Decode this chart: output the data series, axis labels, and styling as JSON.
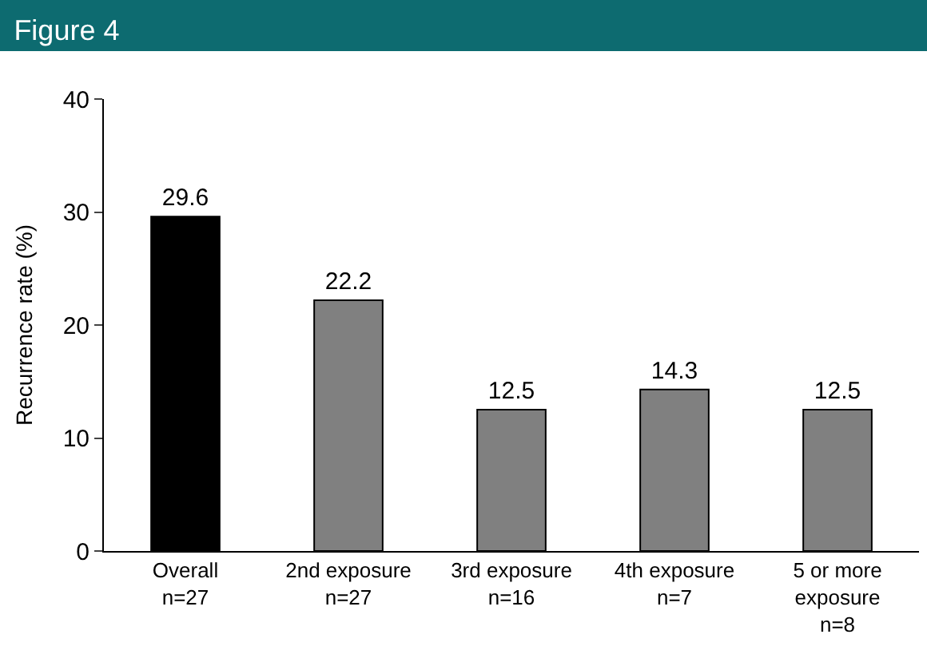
{
  "chart_data": {
    "type": "bar",
    "title": "Figure 4",
    "ylabel": "Recurrence rate (%)",
    "categories": [
      "Overall\nn=27",
      "2nd exposure\nn=27",
      "3rd exposure\nn=16",
      "4th exposure\nn=7",
      "5 or more\nexposure\nn=8"
    ],
    "values": [
      29.6,
      22.2,
      12.5,
      14.3,
      12.5
    ],
    "colors": [
      "#000000",
      "#808080",
      "#808080",
      "#808080",
      "#808080"
    ],
    "ylim": [
      0,
      40
    ],
    "yticks": [
      0,
      10,
      20,
      30,
      40
    ],
    "data_labels": true
  }
}
